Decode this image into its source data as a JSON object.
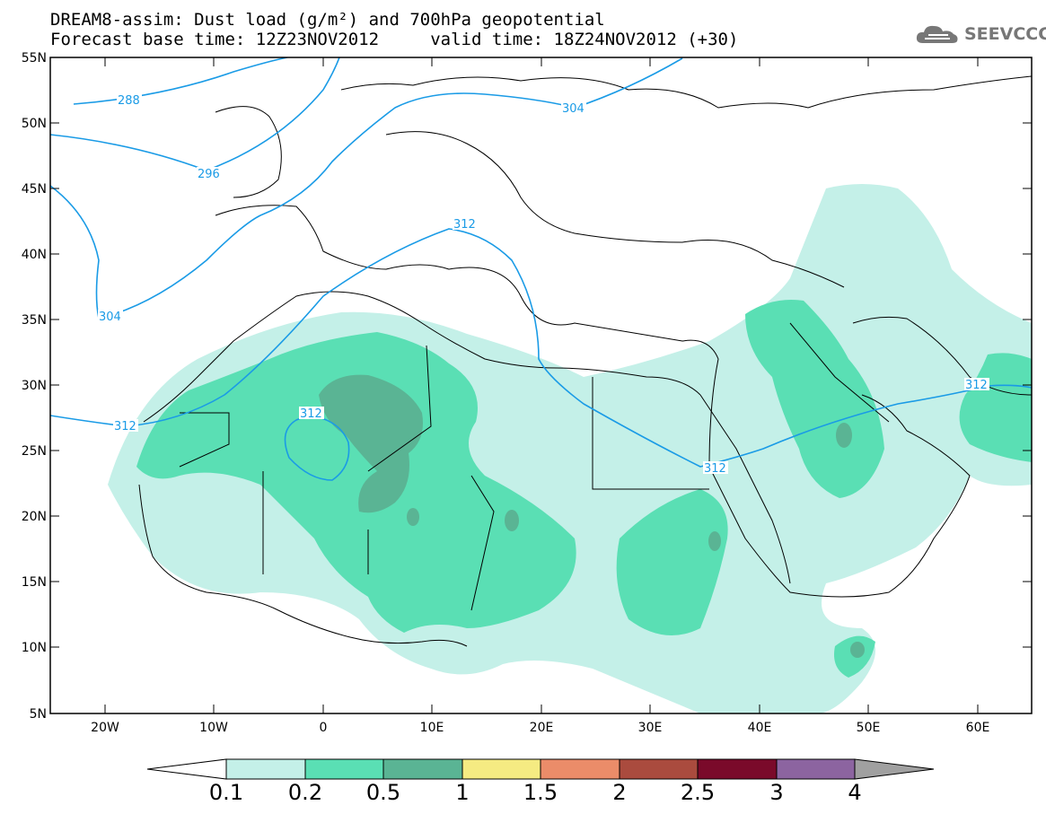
{
  "title_line1": "DREAM8-assim: Dust load (g/m²) and 700hPa geopotential",
  "title_line2": "Forecast base time: 12Z23NOV2012     valid time: 18Z24NOV2012 (+30)",
  "logo_text": "SEEVCCC",
  "lat_labels": [
    "55N",
    "50N",
    "45N",
    "40N",
    "35N",
    "30N",
    "25N",
    "20N",
    "15N",
    "10N",
    "5N"
  ],
  "lon_labels": [
    "20W",
    "10W",
    "0",
    "10E",
    "20E",
    "30E",
    "40E",
    "50E",
    "60E"
  ],
  "contour_labels": [
    "288",
    "296",
    "304",
    "304",
    "312",
    "312",
    "312",
    "312",
    "312"
  ],
  "colorbar": {
    "labels": [
      "0.1",
      "0.2",
      "0.5",
      "1",
      "1.5",
      "2",
      "2.5",
      "3",
      "4"
    ],
    "colors": [
      "#c4f0e8",
      "#5adfb4",
      "#5ab494",
      "#f5eb82",
      "#eb8c69",
      "#aa4b3e",
      "#7a0a2a",
      "#8c64a0"
    ],
    "under_color": "#ffffff",
    "over_color": "#a0a0a0"
  },
  "colors": {
    "contour": "#1a9be6",
    "coast": "#000000",
    "light_dust": "#c4f0e8",
    "mid_dust": "#5adfb4",
    "heavy_dust": "#5ab494"
  }
}
